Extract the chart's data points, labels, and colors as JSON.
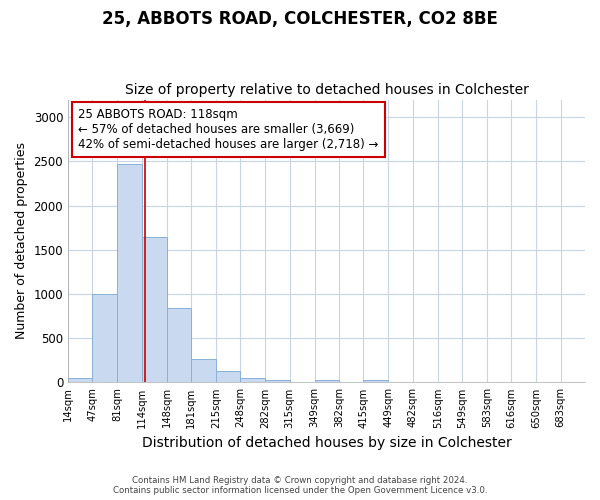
{
  "title1": "25, ABBOTS ROAD, COLCHESTER, CO2 8BE",
  "title2": "Size of property relative to detached houses in Colchester",
  "xlabel": "Distribution of detached houses by size in Colchester",
  "ylabel": "Number of detached properties",
  "bin_labels": [
    "14sqm",
    "47sqm",
    "81sqm",
    "114sqm",
    "148sqm",
    "181sqm",
    "215sqm",
    "248sqm",
    "282sqm",
    "315sqm",
    "349sqm",
    "382sqm",
    "415sqm",
    "449sqm",
    "482sqm",
    "516sqm",
    "549sqm",
    "583sqm",
    "616sqm",
    "650sqm",
    "683sqm"
  ],
  "bin_edges": [
    14,
    47,
    81,
    114,
    148,
    181,
    215,
    248,
    282,
    315,
    349,
    382,
    415,
    449,
    482,
    516,
    549,
    583,
    616,
    650,
    683,
    716
  ],
  "bar_values": [
    55,
    1000,
    2470,
    1650,
    840,
    270,
    130,
    55,
    30,
    0,
    30,
    0,
    30,
    0,
    0,
    0,
    0,
    0,
    0,
    0,
    0
  ],
  "bar_color": "#c8d9f0",
  "bar_edge_color": "#8ab0d8",
  "property_size": 118,
  "property_line_color": "#cc0000",
  "annotation_text": "25 ABBOTS ROAD: 118sqm\n← 57% of detached houses are smaller (3,669)\n42% of semi-detached houses are larger (2,718) →",
  "annotation_box_color": "#ffffff",
  "annotation_box_edge": "#cc0000",
  "ylim": [
    0,
    3200
  ],
  "yticks": [
    0,
    500,
    1000,
    1500,
    2000,
    2500,
    3000
  ],
  "footer_text": "Contains HM Land Registry data © Crown copyright and database right 2024.\nContains public sector information licensed under the Open Government Licence v3.0.",
  "bg_color": "#ffffff",
  "plot_bg_color": "#ffffff",
  "grid_color": "#c8d4e8",
  "title1_fontsize": 12,
  "title2_fontsize": 10,
  "xlabel_fontsize": 10,
  "ylabel_fontsize": 9,
  "annotation_fontsize": 8.5
}
